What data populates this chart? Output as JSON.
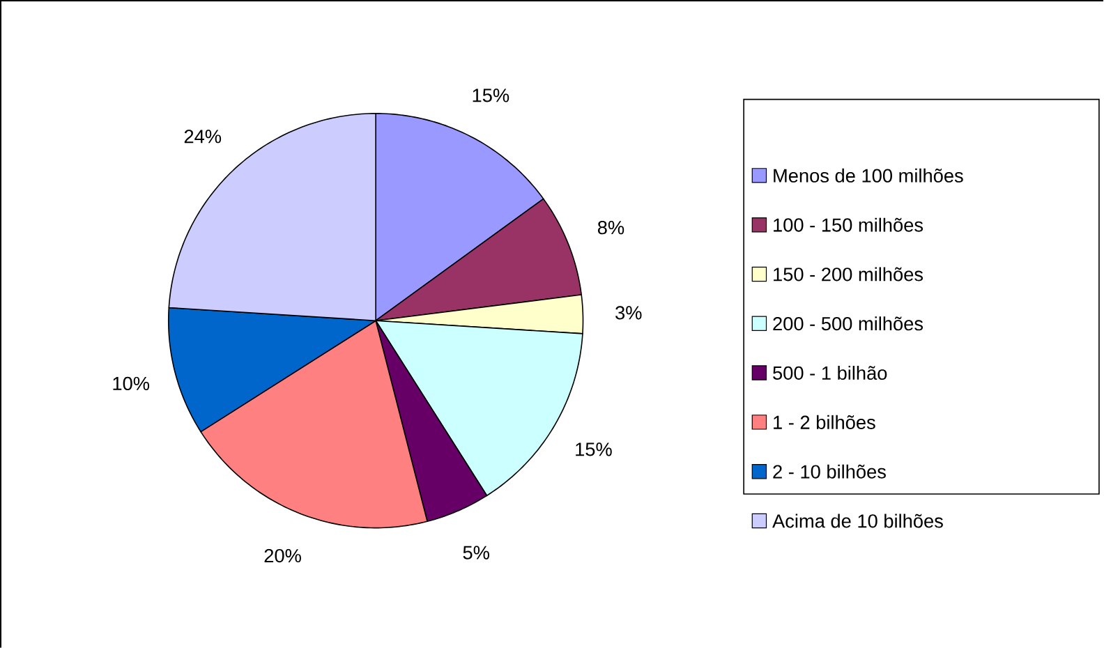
{
  "chart_data": {
    "type": "pie",
    "categories": [
      "Menos de 100 milhões",
      "100 - 150 milhões",
      "150 - 200 milhões",
      "200 - 500 milhões",
      "500 - 1 bilhão",
      "1 - 2 bilhões",
      "2 - 10 bilhões",
      "Acima de 10 bilhões"
    ],
    "values": [
      15,
      8,
      3,
      15,
      5,
      20,
      10,
      24
    ],
    "value_labels": [
      "15%",
      "8%",
      "3%",
      "15%",
      "5%",
      "20%",
      "10%",
      "24%"
    ],
    "colors": [
      "#9999ff",
      "#993366",
      "#ffffcc",
      "#ccffff",
      "#660066",
      "#ff8080",
      "#0066cc",
      "#ccccff"
    ],
    "legend": "right"
  }
}
